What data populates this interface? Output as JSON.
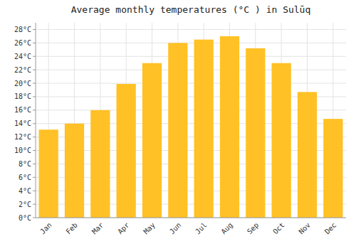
{
  "chart_data": {
    "type": "bar",
    "title": "Average monthly temperatures (°C ) in Sulūq",
    "categories": [
      "Jan",
      "Feb",
      "Mar",
      "Apr",
      "May",
      "Jun",
      "Jul",
      "Aug",
      "Sep",
      "Oct",
      "Nov",
      "Dec"
    ],
    "values": [
      13.1,
      14.0,
      16.0,
      19.9,
      23.0,
      26.0,
      26.5,
      27.0,
      25.2,
      23.0,
      18.7,
      14.7
    ],
    "color": "#FFC125",
    "ylim": [
      0,
      29
    ],
    "yticks": [
      {
        "value": 0,
        "label": "0°C"
      },
      {
        "value": 2,
        "label": "2°C"
      },
      {
        "value": 4,
        "label": "4°C"
      },
      {
        "value": 6,
        "label": "6°C"
      },
      {
        "value": 8,
        "label": "8°C"
      },
      {
        "value": 10,
        "label": "10°C"
      },
      {
        "value": 12,
        "label": "12°C"
      },
      {
        "value": 14,
        "label": "14°C"
      },
      {
        "value": 16,
        "label": "16°C"
      },
      {
        "value": 18,
        "label": "18°C"
      },
      {
        "value": 20,
        "label": "20°C"
      },
      {
        "value": 22,
        "label": "22°C"
      },
      {
        "value": 24,
        "label": "24°C"
      },
      {
        "value": 26,
        "label": "26°C"
      },
      {
        "value": 28,
        "label": "28°C"
      }
    ],
    "grid": true
  }
}
